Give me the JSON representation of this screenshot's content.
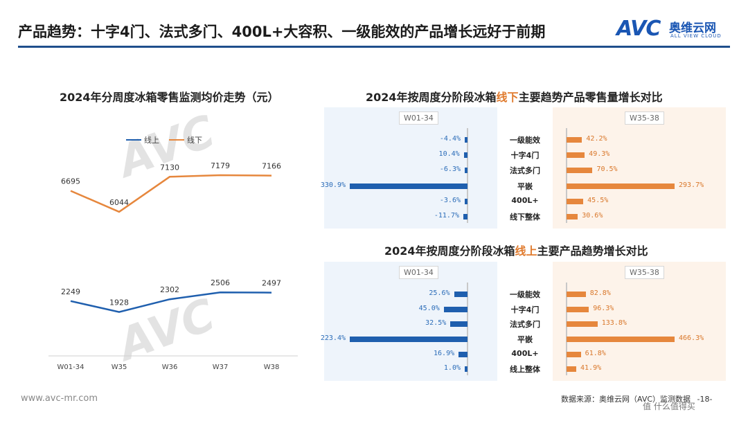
{
  "header": {
    "title": "产品趋势：十字4门、法式多门、400L+大容积、一级能效的产品增长远好于前期",
    "logo_mark": "AVC",
    "logo_cn": "奥维云网",
    "logo_en": "ALL VIEW CLOUD"
  },
  "watermark_text": "AVC",
  "footer": {
    "url": "www.avc-mr.com",
    "source": "数据来源：奥维云网（AVC）监测数据",
    "page": "-18-",
    "platform_watermark": "值 什么值得买"
  },
  "colors": {
    "online": "#1f5fae",
    "offline": "#e6873d",
    "accent": "#e07b2e",
    "rule": "#1f4e8c"
  },
  "chart_data": [
    {
      "type": "line",
      "title": "2024年分周度冰箱零售监测均价走势（元）",
      "categories": [
        "W01-34",
        "W35",
        "W36",
        "W37",
        "W38"
      ],
      "series": [
        {
          "name": "线上",
          "values": [
            2249,
            1928,
            2302,
            2506,
            2497
          ]
        },
        {
          "name": "线下",
          "values": [
            6695,
            6044,
            7130,
            7179,
            7166
          ]
        }
      ],
      "legend": "top-center",
      "grid": false
    },
    {
      "type": "bar",
      "title_pre": "2024年按周度分阶段冰箱",
      "title_hl": "线下",
      "title_post": "主要趋势产品零售量增长对比",
      "categories": [
        "一级能效",
        "十字4门",
        "法式多门",
        "平嵌",
        "400L+",
        "线下整体"
      ],
      "series": [
        {
          "name": "W01-34",
          "values": [
            "-4.4%",
            "10.4%",
            "-6.3%",
            "330.9%",
            "-3.6%",
            "-11.7%"
          ],
          "numeric": [
            -4.4,
            10.4,
            -6.3,
            330.9,
            -3.6,
            -11.7
          ]
        },
        {
          "name": "W35-38",
          "values": [
            "42.2%",
            "49.3%",
            "70.5%",
            "293.7%",
            "45.5%",
            "30.6%"
          ],
          "numeric": [
            42.2,
            49.3,
            70.5,
            293.7,
            45.5,
            30.6
          ]
        }
      ]
    },
    {
      "type": "bar",
      "title_pre": "2024年按周度分阶段冰箱",
      "title_hl": "线上",
      "title_post": "主要产品趋势增长对比",
      "categories": [
        "一级能效",
        "十字4门",
        "法式多门",
        "平嵌",
        "400L+",
        "线上整体"
      ],
      "series": [
        {
          "name": "W01-34",
          "values": [
            "25.6%",
            "45.0%",
            "32.5%",
            "223.4%",
            "16.9%",
            "1.0%"
          ],
          "numeric": [
            25.6,
            45.0,
            32.5,
            223.4,
            16.9,
            1.0
          ]
        },
        {
          "name": "W35-38",
          "values": [
            "82.8%",
            "96.3%",
            "133.8%",
            "466.3%",
            "61.8%",
            "41.9%"
          ],
          "numeric": [
            82.8,
            96.3,
            133.8,
            466.3,
            61.8,
            41.9
          ]
        }
      ]
    }
  ]
}
